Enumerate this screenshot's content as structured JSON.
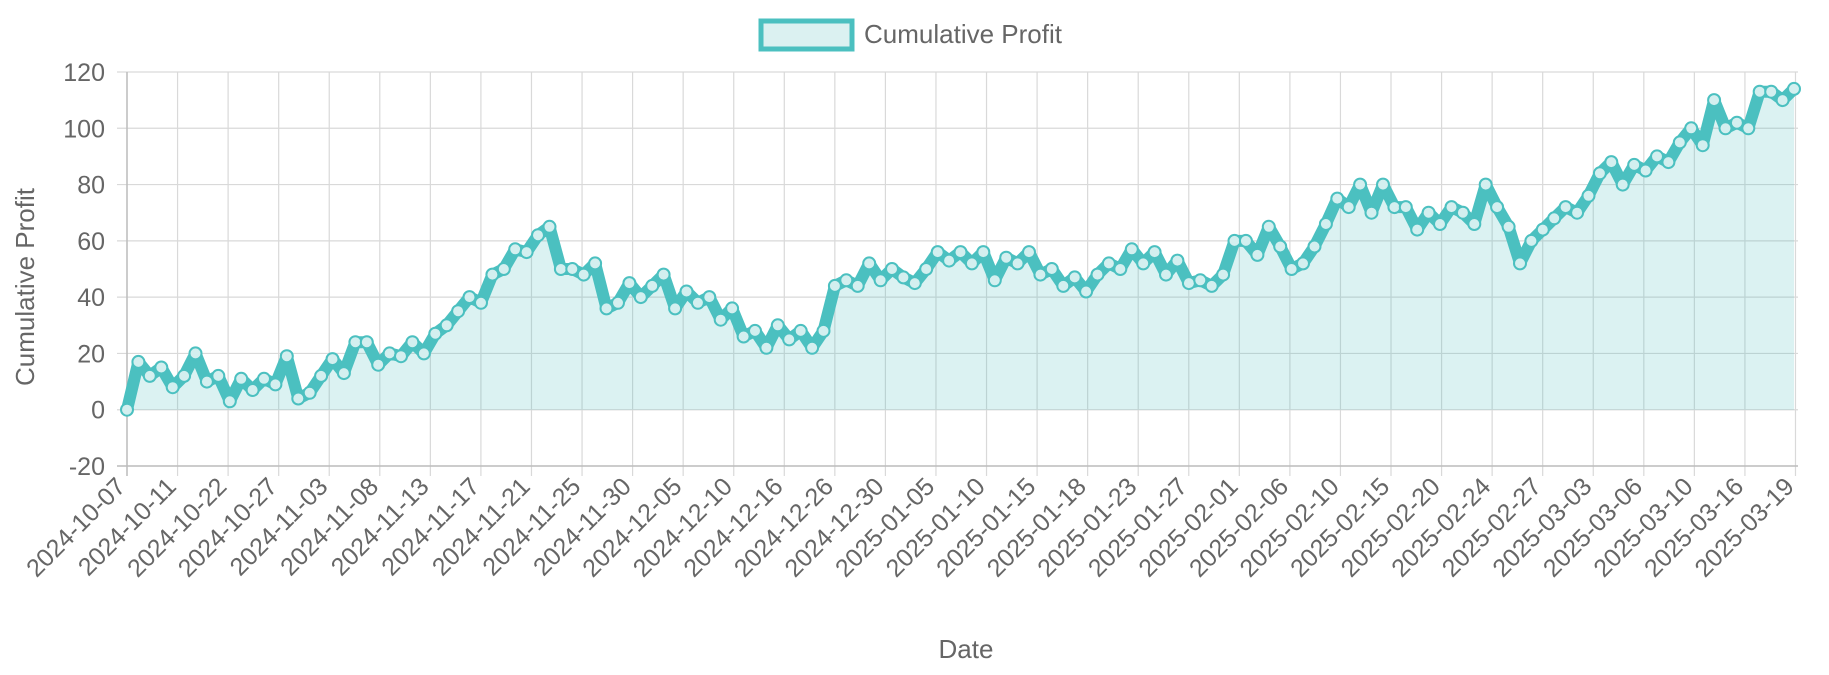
{
  "chart_data": {
    "type": "line",
    "title": "",
    "legend": {
      "position": "top-center",
      "entries": [
        "Cumulative Profit"
      ]
    },
    "xlabel": "Date",
    "ylabel": "Cumulative Profit",
    "ylim": [
      -20,
      120
    ],
    "y_ticks": [
      -20,
      0,
      20,
      40,
      60,
      80,
      100,
      120
    ],
    "x_tick_labels": [
      "2024-10-07",
      "2024-10-11",
      "2024-10-22",
      "2024-10-27",
      "2024-11-03",
      "2024-11-08",
      "2024-11-13",
      "2024-11-17",
      "2024-11-21",
      "2024-11-25",
      "2024-11-30",
      "2024-12-05",
      "2024-12-10",
      "2024-12-16",
      "2024-12-26",
      "2024-12-30",
      "2025-01-05",
      "2025-01-10",
      "2025-01-15",
      "2025-01-18",
      "2025-01-23",
      "2025-01-27",
      "2025-02-01",
      "2025-02-06",
      "2025-02-10",
      "2025-02-15",
      "2025-02-20",
      "2025-02-24",
      "2025-02-27",
      "2025-03-03",
      "2025-03-06",
      "2025-03-10",
      "2025-03-16",
      "2025-03-19"
    ],
    "grid": true,
    "fill": true,
    "colors": {
      "line": "#4bc0c0",
      "fill": "rgba(75,192,192,0.2)"
    },
    "series": [
      {
        "name": "Cumulative Profit",
        "values": [
          0,
          17,
          12,
          15,
          8,
          12,
          20,
          10,
          12,
          3,
          11,
          7,
          11,
          9,
          19,
          4,
          6,
          12,
          18,
          13,
          24,
          24,
          16,
          20,
          19,
          24,
          20,
          27,
          30,
          35,
          40,
          38,
          48,
          50,
          57,
          56,
          62,
          65,
          50,
          50,
          48,
          52,
          36,
          38,
          45,
          40,
          44,
          48,
          36,
          42,
          38,
          40,
          32,
          36,
          26,
          28,
          22,
          30,
          25,
          28,
          22,
          28,
          44,
          46,
          44,
          52,
          46,
          50,
          47,
          45,
          50,
          56,
          53,
          56,
          52,
          56,
          46,
          54,
          52,
          56,
          48,
          50,
          44,
          47,
          42,
          48,
          52,
          50,
          57,
          52,
          56,
          48,
          53,
          45,
          46,
          44,
          48,
          60,
          60,
          55,
          65,
          58,
          50,
          52,
          58,
          66,
          75,
          72,
          80,
          70,
          80,
          72,
          72,
          64,
          70,
          66,
          72,
          70,
          66,
          80,
          72,
          65,
          52,
          60,
          64,
          68,
          72,
          70,
          76,
          84,
          88,
          80,
          87,
          85,
          90,
          88,
          95,
          100,
          94,
          110,
          100,
          102,
          100,
          113,
          113,
          110,
          114
        ]
      }
    ]
  }
}
